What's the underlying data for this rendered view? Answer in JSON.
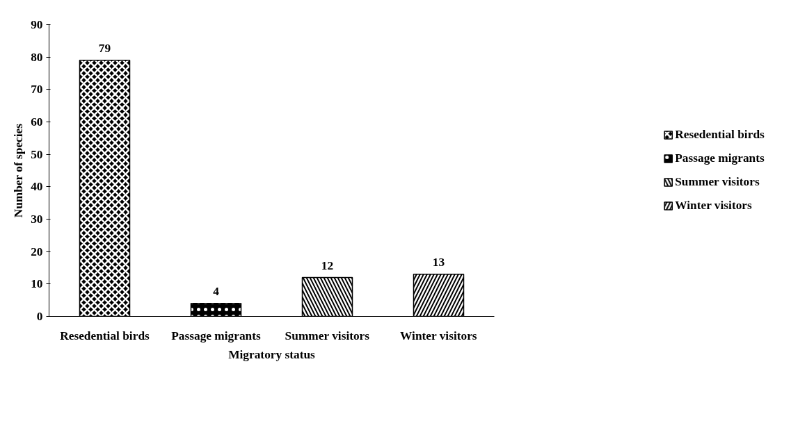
{
  "chart_data": {
    "type": "bar",
    "xlabel": "Migratory status",
    "ylabel": "Number of species",
    "categories": [
      "Resedential birds",
      "Passage migrants",
      "Summer visitors",
      "Winter visitors"
    ],
    "series": [
      {
        "name": "Resedential birds",
        "color": "#000000",
        "values": [
          79,
          null,
          null,
          null
        ]
      },
      {
        "name": "Passage migrants",
        "color": "#000000",
        "values": [
          null,
          4,
          null,
          null
        ]
      },
      {
        "name": "Summer visitors",
        "color": "#000000",
        "values": [
          null,
          null,
          12,
          null
        ]
      },
      {
        "name": "Winter visitors",
        "color": "#000000",
        "values": [
          null,
          null,
          null,
          13
        ]
      }
    ],
    "ylim": [
      0,
      90
    ],
    "yticks": [
      0,
      10,
      20,
      30,
      40,
      50,
      60,
      70,
      80,
      90
    ],
    "grid": false,
    "legend": "right",
    "data_labels": true
  }
}
